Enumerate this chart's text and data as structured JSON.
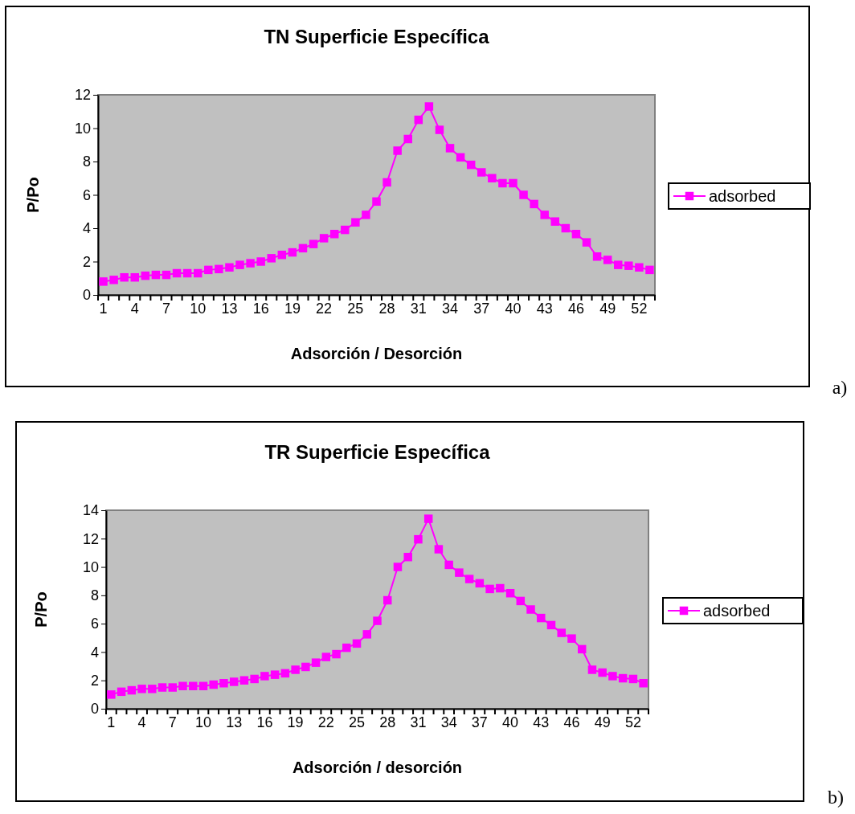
{
  "chart_data": [
    {
      "type": "line",
      "title": "TN Superficie Específica",
      "xlabel": "Adsorción / Desorción",
      "ylabel": "P/Po",
      "categories": [
        "1",
        null,
        null,
        "4",
        null,
        null,
        "7",
        null,
        null,
        "10",
        null,
        null,
        "13",
        null,
        null,
        "16",
        null,
        null,
        "19",
        null,
        null,
        "22",
        null,
        null,
        "25",
        null,
        null,
        "28",
        null,
        null,
        "31",
        null,
        null,
        "34",
        null,
        null,
        "37",
        null,
        null,
        "40",
        null,
        null,
        "43",
        null,
        null,
        "46",
        null,
        null,
        "49",
        null,
        null,
        "52",
        null
      ],
      "series": [
        {
          "name": "adsorbed",
          "color": "#ff00ff",
          "values": [
            0.8,
            0.9,
            1.05,
            1.05,
            1.15,
            1.2,
            1.2,
            1.3,
            1.3,
            1.3,
            1.5,
            1.55,
            1.65,
            1.8,
            1.9,
            2.0,
            2.2,
            2.4,
            2.55,
            2.8,
            3.05,
            3.4,
            3.65,
            3.9,
            4.35,
            4.8,
            5.6,
            6.75,
            8.65,
            9.35,
            10.5,
            11.3,
            9.9,
            8.8,
            8.25,
            7.8,
            7.35,
            7.0,
            6.7,
            6.7,
            6.0,
            5.45,
            4.8,
            4.4,
            4.0,
            3.65,
            3.15,
            2.3,
            2.1,
            1.8,
            1.75,
            1.65,
            1.5
          ]
        }
      ],
      "ylim": [
        0,
        12
      ],
      "yticks": [
        0,
        2,
        4,
        6,
        8,
        10,
        12
      ],
      "grid": false,
      "legend": "right",
      "marker": "square",
      "line_style": "solid",
      "annotations": [
        "a)"
      ]
    },
    {
      "type": "line",
      "title": "TR  Superficie Específica",
      "xlabel": "Adsorción / desorción",
      "ylabel": "P/Po",
      "categories": [
        "1",
        null,
        null,
        "4",
        null,
        null,
        "7",
        null,
        null,
        "10",
        null,
        null,
        "13",
        null,
        null,
        "16",
        null,
        null,
        "19",
        null,
        null,
        "22",
        null,
        null,
        "25",
        null,
        null,
        "28",
        null,
        null,
        "31",
        null,
        null,
        "34",
        null,
        null,
        "37",
        null,
        null,
        "40",
        null,
        null,
        "43",
        null,
        null,
        "46",
        null,
        null,
        "49",
        null,
        null,
        "52",
        null
      ],
      "series": [
        {
          "name": "adsorbed",
          "color": "#ff00ff",
          "values": [
            1.0,
            1.2,
            1.3,
            1.4,
            1.4,
            1.5,
            1.5,
            1.6,
            1.6,
            1.6,
            1.7,
            1.8,
            1.9,
            2.0,
            2.1,
            2.3,
            2.4,
            2.5,
            2.75,
            2.95,
            3.25,
            3.65,
            3.85,
            4.3,
            4.6,
            5.25,
            6.2,
            7.65,
            10.0,
            10.7,
            11.95,
            13.4,
            11.25,
            10.15,
            9.6,
            9.15,
            8.85,
            8.45,
            8.5,
            8.15,
            7.6,
            7.0,
            6.4,
            5.9,
            5.35,
            4.95,
            4.2,
            2.75,
            2.55,
            2.3,
            2.15,
            2.1,
            1.8
          ]
        }
      ],
      "ylim": [
        0,
        14
      ],
      "yticks": [
        0,
        2,
        4,
        6,
        8,
        10,
        12,
        14
      ],
      "grid": false,
      "legend": "right",
      "marker": "square",
      "line_style": "solid",
      "annotations": [
        "b)"
      ]
    }
  ]
}
